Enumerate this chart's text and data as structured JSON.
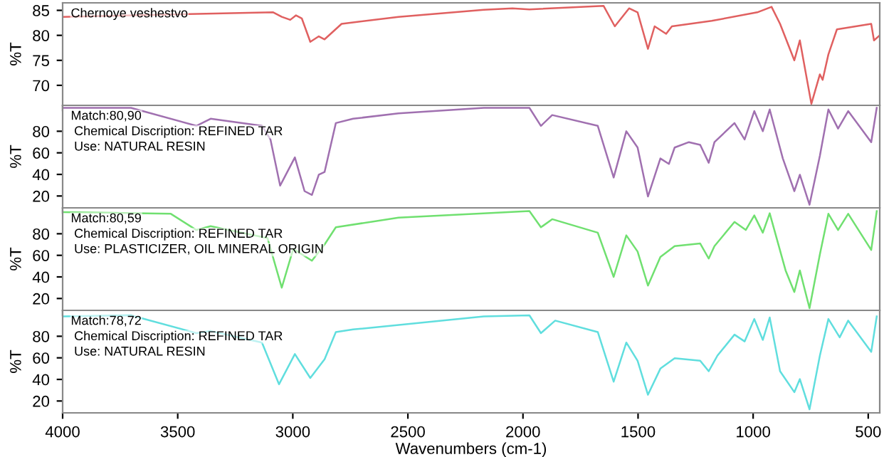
{
  "chart_data": [
    {
      "type": "line",
      "ylabel": "%T",
      "xlim": [
        4000,
        450
      ],
      "ylim": [
        66,
        86.5
      ],
      "yticks": [
        70,
        75,
        80,
        85
      ],
      "tick_labels": "y",
      "grid": false,
      "annotations": [
        "Chernoye veshestvo"
      ],
      "series": [
        {
          "color": "#e06060",
          "x": [
            4000,
            3085,
            3048,
            3011,
            2986,
            2961,
            2924,
            2887,
            2862,
            2788,
            2541,
            2170,
            2046,
            1972,
            1650,
            1601,
            1539,
            1502,
            1457,
            1428,
            1378,
            1353,
            1180,
            982,
            920,
            883,
            821,
            797,
            747,
            710,
            698,
            673,
            636,
            487,
            475,
            450
          ],
          "values": [
            83.7,
            84.6,
            83.7,
            83.1,
            84,
            83.4,
            78.7,
            79.8,
            79.2,
            82.3,
            83.7,
            85.1,
            85.4,
            85.2,
            85.9,
            81.8,
            85.4,
            84.6,
            77.3,
            81.8,
            80.3,
            81.8,
            82.9,
            84.6,
            85.7,
            82.3,
            75,
            79,
            66.3,
            72.2,
            71.1,
            76.2,
            81.2,
            82.3,
            79,
            80
          ]
        }
      ]
    },
    {
      "type": "line",
      "ylabel": "%T",
      "xlim": [
        4000,
        450
      ],
      "ylim": [
        9,
        104
      ],
      "yticks": [
        20,
        40,
        60,
        80
      ],
      "tick_labels": "y",
      "grid": false,
      "annotations": [
        "Match:80,90",
        "Chemical Discription: REFINED TAR",
        "Use: NATURAL RESIN"
      ],
      "series": [
        {
          "color": "#a070b0",
          "x": [
            4000,
            3703,
            3419,
            3357,
            3134,
            3097,
            3055,
            2991,
            2949,
            2917,
            2887,
            2862,
            2813,
            2738,
            2541,
            2170,
            1972,
            1922,
            1873,
            1675,
            1606,
            1551,
            1502,
            1457,
            1403,
            1366,
            1341,
            1279,
            1230,
            1193,
            1168,
            1081,
            1037,
            995,
            958,
            928,
            871,
            821,
            797,
            755,
            710,
            673,
            631,
            587,
            487,
            463
          ],
          "values": [
            101.7,
            101.7,
            85,
            91.6,
            85,
            72.4,
            29.6,
            55.8,
            24.5,
            21,
            39.7,
            42.2,
            87.6,
            91.6,
            96.6,
            101.7,
            101.7,
            85,
            95,
            85,
            37.1,
            80,
            64.9,
            19.5,
            54.8,
            49.7,
            64.9,
            69.9,
            67.4,
            50.8,
            69.9,
            87.6,
            72.4,
            98.7,
            80,
            100.2,
            54.8,
            24.5,
            39.7,
            11.9,
            57.3,
            100.2,
            82.5,
            98.7,
            69.9,
            101.7
          ]
        }
      ]
    },
    {
      "type": "line",
      "ylabel": "%T",
      "xlim": [
        4000,
        450
      ],
      "ylim": [
        9,
        104
      ],
      "yticks": [
        20,
        40,
        60,
        80
      ],
      "tick_labels": "y",
      "grid": false,
      "annotations": [
        "Match:80,59",
        "Chemical Discription: REFINED TAR",
        "Use: PLASTICIZER, OIL MINERAL ORIGIN"
      ],
      "series": [
        {
          "color": "#70e070",
          "x": [
            4000,
            3530,
            3419,
            3357,
            3110,
            3048,
            2998,
            2917,
            2862,
            2813,
            2541,
            1972,
            1922,
            1873,
            1675,
            1606,
            1551,
            1502,
            1457,
            1403,
            1341,
            1230,
            1193,
            1168,
            1081,
            1032,
            995,
            958,
            928,
            859,
            821,
            797,
            755,
            710,
            673,
            631,
            587,
            487,
            463
          ],
          "values": [
            100,
            98.5,
            83.5,
            87,
            76,
            30,
            66,
            55,
            70,
            86,
            95,
            101,
            86,
            93.5,
            81,
            40,
            78.5,
            63.5,
            32,
            58.5,
            68.5,
            71,
            57,
            68.5,
            91,
            83.5,
            97,
            81,
            99,
            46,
            26,
            46,
            11,
            61,
            98.5,
            83.5,
            98.5,
            65,
            101
          ]
        }
      ]
    },
    {
      "type": "line",
      "ylabel": "%T",
      "xlabel": "Wavenumbers (cm-1)",
      "xlim": [
        4000,
        450
      ],
      "xticks": [
        4000,
        3500,
        3000,
        2500,
        2000,
        1500,
        1000,
        500
      ],
      "ylim": [
        9,
        104
      ],
      "yticks": [
        20,
        40,
        60,
        80
      ],
      "grid": false,
      "annotations": [
        "Match:78,72",
        "Chemical Discription: REFINED TAR",
        "Use: NATURAL RESIN"
      ],
      "series": [
        {
          "color": "#60dede",
          "x": [
            4000,
            3703,
            3419,
            3357,
            3134,
            3060,
            2991,
            2924,
            2862,
            2813,
            2738,
            2170,
            1972,
            1922,
            1860,
            1675,
            1606,
            1551,
            1502,
            1457,
            1403,
            1341,
            1230,
            1193,
            1155,
            1081,
            1037,
            995,
            958,
            928,
            883,
            821,
            797,
            755,
            710,
            673,
            624,
            587,
            487,
            463
          ],
          "values": [
            98.4,
            99.4,
            82.9,
            84.8,
            74.2,
            35.5,
            63.5,
            41.3,
            58.7,
            83.9,
            86.3,
            98.4,
            99.4,
            82.9,
            94.5,
            83.9,
            37.9,
            74.2,
            57.3,
            25.8,
            50,
            59.7,
            57.3,
            47.6,
            62.1,
            81.5,
            75.2,
            96,
            76.6,
            97.4,
            47.6,
            28.2,
            40.3,
            12.3,
            62.1,
            96,
            79,
            94.5,
            65.5,
            98.4
          ]
        }
      ]
    }
  ]
}
